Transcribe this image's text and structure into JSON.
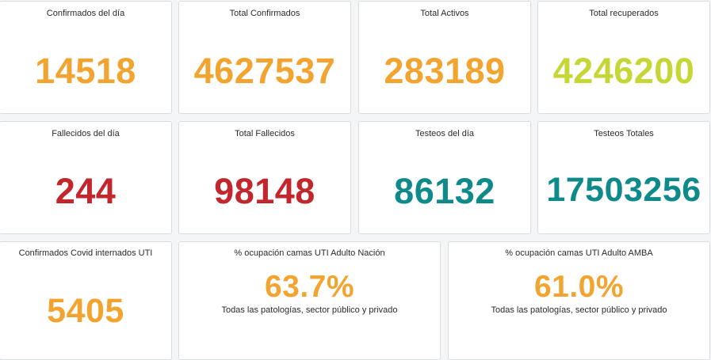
{
  "colors": {
    "orange": "#f2a430",
    "lime": "#c7d637",
    "red": "#c1272d",
    "teal": "#0f8a8a"
  },
  "cards": {
    "confirmados_dia": {
      "title": "Confirmados del día",
      "value": "14518"
    },
    "total_confirmados": {
      "title": "Total Confirmados",
      "value": "4627537"
    },
    "total_activos": {
      "title": "Total Activos",
      "value": "283189"
    },
    "total_recuperados": {
      "title": "Total recuperados",
      "value": "4246200"
    },
    "fallecidos_dia": {
      "title": "Fallecidos del día",
      "value": "244"
    },
    "total_fallecidos": {
      "title": "Total Fallecidos",
      "value": "98148"
    },
    "testeos_dia": {
      "title": "Testeos del día",
      "value": "86132"
    },
    "testeos_totales": {
      "title": "Testeos Totales",
      "value": "17503256"
    },
    "internados_uti": {
      "title": "Confirmados Covid internados UTI",
      "value": "5405"
    },
    "ocupacion_nacion": {
      "title": "% ocupación camas UTI Adulto Nación",
      "value": "63.7%",
      "subtitle": "Todas las patologías, sector público y privado"
    },
    "ocupacion_amba": {
      "title": "% ocupación camas UTI Adulto AMBA",
      "value": "61.0%",
      "subtitle": "Todas las patologías, sector público y privado"
    }
  }
}
